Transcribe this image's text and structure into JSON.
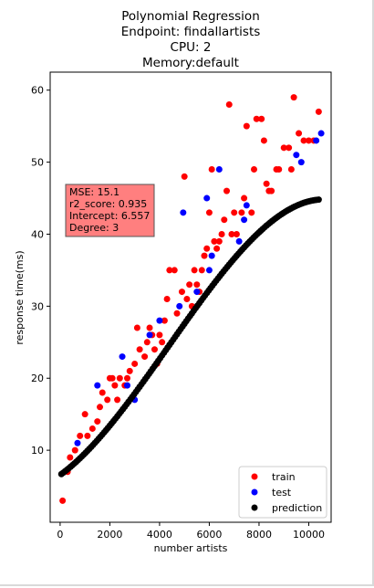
{
  "chart_data": {
    "type": "scatter",
    "title_lines": [
      "Polynomial Regression",
      "Endpoint: findallartists",
      "CPU: 2",
      "Memory:default"
    ],
    "xlabel": "number artists",
    "ylabel": "response time(ms)",
    "xlim": [
      -400,
      10900
    ],
    "ylim": [
      0,
      62.5
    ],
    "xticks": [
      0,
      2000,
      4000,
      6000,
      8000,
      10000
    ],
    "xtick_labels": [
      "0",
      "2000",
      "4000",
      "6000",
      "8000",
      "10000"
    ],
    "yticks": [
      10,
      20,
      30,
      40,
      50,
      60
    ],
    "ytick_labels": [
      "10",
      "20",
      "30",
      "40",
      "50",
      "60"
    ],
    "grid": false,
    "legend_position": "lower-right",
    "annotation": {
      "lines": [
        "MSE: 15.1",
        "r2_score: 0.935",
        "Intercept: 6.557",
        "Degree: 3"
      ],
      "background": "#ff7f7f"
    },
    "model": {
      "intercept": 6.557,
      "degree": 3,
      "mse": 15.1,
      "r2_score": 0.935
    },
    "series": [
      {
        "name": "train",
        "color": "#ff0000",
        "points": [
          [
            100,
            3
          ],
          [
            300,
            7
          ],
          [
            400,
            9
          ],
          [
            600,
            10
          ],
          [
            800,
            12
          ],
          [
            1000,
            15
          ],
          [
            1100,
            12
          ],
          [
            1300,
            13
          ],
          [
            1500,
            14
          ],
          [
            1600,
            16
          ],
          [
            1700,
            18
          ],
          [
            1900,
            17
          ],
          [
            2000,
            20
          ],
          [
            2100,
            20
          ],
          [
            2200,
            19
          ],
          [
            2300,
            17
          ],
          [
            2400,
            20
          ],
          [
            2600,
            19
          ],
          [
            2700,
            20
          ],
          [
            2800,
            21
          ],
          [
            3000,
            22
          ],
          [
            3100,
            27
          ],
          [
            3200,
            24
          ],
          [
            3400,
            23
          ],
          [
            3500,
            25
          ],
          [
            3600,
            27
          ],
          [
            3700,
            26
          ],
          [
            3800,
            24
          ],
          [
            3900,
            22
          ],
          [
            4000,
            26
          ],
          [
            4100,
            25
          ],
          [
            4200,
            28
          ],
          [
            4300,
            31
          ],
          [
            4400,
            35
          ],
          [
            4600,
            35
          ],
          [
            4700,
            29
          ],
          [
            4900,
            32
          ],
          [
            5000,
            48
          ],
          [
            5100,
            31
          ],
          [
            5200,
            33
          ],
          [
            5300,
            30
          ],
          [
            5400,
            35
          ],
          [
            5500,
            33
          ],
          [
            5600,
            32
          ],
          [
            5700,
            35
          ],
          [
            5800,
            37
          ],
          [
            5900,
            38
          ],
          [
            6000,
            43
          ],
          [
            6100,
            49
          ],
          [
            6200,
            39
          ],
          [
            6300,
            38
          ],
          [
            6400,
            39
          ],
          [
            6500,
            40
          ],
          [
            6600,
            42
          ],
          [
            6700,
            46
          ],
          [
            6800,
            58
          ],
          [
            6900,
            40
          ],
          [
            7000,
            43
          ],
          [
            7100,
            40
          ],
          [
            7300,
            43
          ],
          [
            7400,
            45
          ],
          [
            7500,
            55
          ],
          [
            7700,
            43
          ],
          [
            7800,
            49
          ],
          [
            7900,
            56
          ],
          [
            8100,
            56
          ],
          [
            8200,
            53
          ],
          [
            8300,
            47
          ],
          [
            8400,
            46
          ],
          [
            8500,
            46
          ],
          [
            8700,
            49
          ],
          [
            8800,
            49
          ],
          [
            9000,
            52
          ],
          [
            9200,
            52
          ],
          [
            9300,
            49
          ],
          [
            9400,
            59
          ],
          [
            9600,
            54
          ],
          [
            9800,
            53
          ],
          [
            10000,
            53
          ],
          [
            10200,
            53
          ],
          [
            10400,
            57
          ]
        ]
      },
      {
        "name": "test",
        "color": "#0000ff",
        "points": [
          [
            700,
            11
          ],
          [
            1500,
            19
          ],
          [
            2500,
            23
          ],
          [
            2700,
            19
          ],
          [
            3000,
            17
          ],
          [
            3600,
            26
          ],
          [
            4000,
            28
          ],
          [
            4800,
            30
          ],
          [
            4950,
            43
          ],
          [
            5500,
            32
          ],
          [
            5900,
            45
          ],
          [
            6000,
            35
          ],
          [
            6100,
            37
          ],
          [
            6400,
            49
          ],
          [
            7200,
            39
          ],
          [
            7400,
            42
          ],
          [
            7500,
            44
          ],
          [
            9500,
            51
          ],
          [
            9700,
            50
          ],
          [
            10300,
            53
          ],
          [
            10500,
            54
          ]
        ]
      },
      {
        "name": "prediction",
        "color": "#000000",
        "points": "model_curve"
      }
    ]
  }
}
